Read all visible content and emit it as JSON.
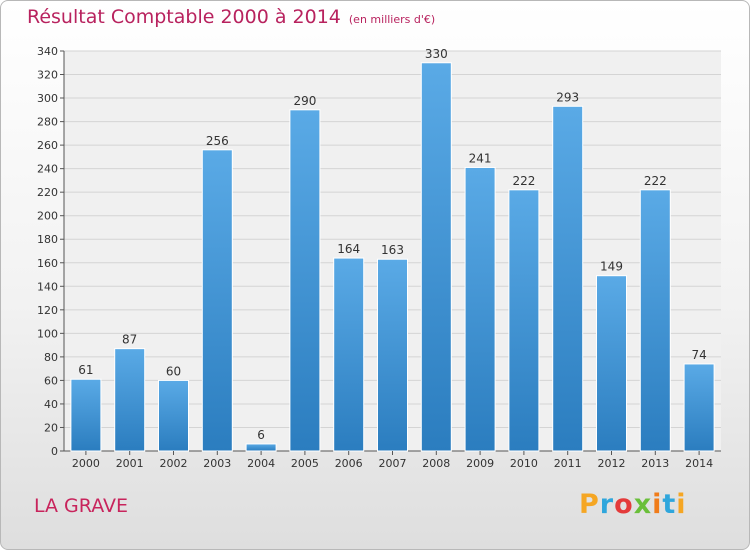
{
  "header": {
    "title": "Résultat Comptable 2000 à 2014",
    "subtitle": "(en milliers d'€)"
  },
  "footer": {
    "city": "LA GRAVE",
    "logo": "Proxiti",
    "logo_colors": [
      "#f5a623",
      "#2fa6dc",
      "#e43b3b",
      "#6abf3a",
      "#f07c1a",
      "#2fa6dc",
      "#f5a623"
    ]
  },
  "chart_data": {
    "type": "bar",
    "title": "Résultat Comptable 2000 à 2014",
    "subtitle": "(en milliers d'€)",
    "xlabel": "",
    "ylabel": "",
    "categories": [
      "2000",
      "2001",
      "2002",
      "2003",
      "2004",
      "2005",
      "2006",
      "2007",
      "2008",
      "2009",
      "2010",
      "2011",
      "2012",
      "2013",
      "2014"
    ],
    "values": [
      61,
      87,
      60,
      256,
      6,
      290,
      164,
      163,
      330,
      241,
      222,
      293,
      149,
      222,
      74
    ],
    "data_labels": [
      "61",
      "87",
      "60",
      "256",
      "6",
      "290",
      "164",
      "163",
      "330",
      "241",
      "222",
      "293",
      "149",
      "222",
      "74"
    ],
    "ylim": [
      0,
      340
    ],
    "yticks": [
      0,
      20,
      40,
      60,
      80,
      100,
      120,
      140,
      160,
      180,
      200,
      220,
      240,
      260,
      280,
      300,
      320,
      340
    ],
    "grid": true,
    "bar_color_top": "#5aaae6",
    "bar_color_bottom": "#2b7dbf"
  }
}
